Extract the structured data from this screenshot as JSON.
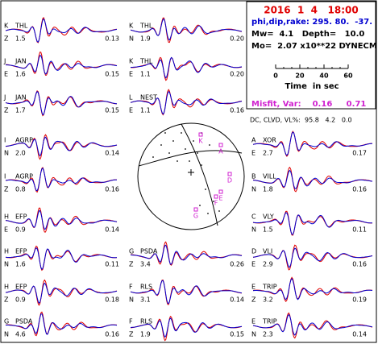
{
  "header": {
    "date": "2016  1  4   18:00",
    "angles": "phi,dip,rake: 295. 80.  -37.",
    "mw": "Mw=  4.1   Depth=   10.0",
    "mo": "Mo=  2.07 x10**22 DYNECM",
    "scale": {
      "ticks": [
        "0",
        "20",
        "40",
        "60"
      ],
      "label": "Time  in sec"
    },
    "misfit": "Misfit, Var:    0.16     0.71",
    "dc": "DC, CLVD, VL%:  95.8   4.2   0.0"
  },
  "beachball": {
    "labels": [
      "K",
      "A",
      "D",
      "E",
      "G",
      "F"
    ]
  },
  "panels": [
    {
      "id": "K",
      "station": "THL",
      "comp": "Z",
      "amp": "1.5",
      "var": "0.13"
    },
    {
      "id": "J",
      "station": "JAN",
      "comp": "E",
      "amp": "1.6",
      "var": "0.15"
    },
    {
      "id": "J",
      "station": "JAN",
      "comp": "Z",
      "amp": "1.7",
      "var": "0.15"
    },
    {
      "id": "I",
      "station": "AGRP",
      "comp": "N",
      "amp": "2.0",
      "var": "0.14"
    },
    {
      "id": "I",
      "station": "AGRP",
      "comp": "Z",
      "amp": "0.8",
      "var": "0.16"
    },
    {
      "id": "H",
      "station": "EFP",
      "comp": "E",
      "amp": "0.9",
      "var": "0.14"
    },
    {
      "id": "H",
      "station": "EFP",
      "comp": "N",
      "amp": "1.6",
      "var": "0.11"
    },
    {
      "id": "H",
      "station": "EFP",
      "comp": "Z",
      "amp": "0.9",
      "var": "0.18"
    },
    {
      "id": "G",
      "station": "PSDA",
      "comp": "N",
      "amp": "4.6",
      "var": "0.16"
    },
    {
      "id": "K",
      "station": "THL",
      "comp": "N",
      "amp": "1.9",
      "var": "0.20"
    },
    {
      "id": "K",
      "station": "THL",
      "comp": "E",
      "amp": "1.1",
      "var": "0.20"
    },
    {
      "id": "L",
      "station": "NEST",
      "comp": "E",
      "amp": "1.1",
      "var": "0.16"
    },
    {
      "id": "G",
      "station": "PSDA",
      "comp": "Z",
      "amp": "3.4",
      "var": "0.26"
    },
    {
      "id": "F",
      "station": "RLS",
      "comp": "N",
      "amp": "3.1",
      "var": "0.14"
    },
    {
      "id": "F",
      "station": "RLS",
      "comp": "Z",
      "amp": "1.9",
      "var": "0.15"
    },
    {
      "id": "A",
      "station": "XOR",
      "comp": "E",
      "amp": "2.7",
      "var": "0.17"
    },
    {
      "id": "B",
      "station": "VILL",
      "comp": "N",
      "amp": "1.8",
      "var": "0.16"
    },
    {
      "id": "C",
      "station": "VLY",
      "comp": "N",
      "amp": "1.5",
      "var": "0.11"
    },
    {
      "id": "D",
      "station": "VLI",
      "comp": "E",
      "amp": "2.9",
      "var": "0.16"
    },
    {
      "id": "E",
      "station": "TRIP",
      "comp": "Z",
      "amp": "3.2",
      "var": "0.19"
    },
    {
      "id": "E",
      "station": "TRIP",
      "comp": "N",
      "amp": "2.3",
      "var": "0.14"
    }
  ]
}
